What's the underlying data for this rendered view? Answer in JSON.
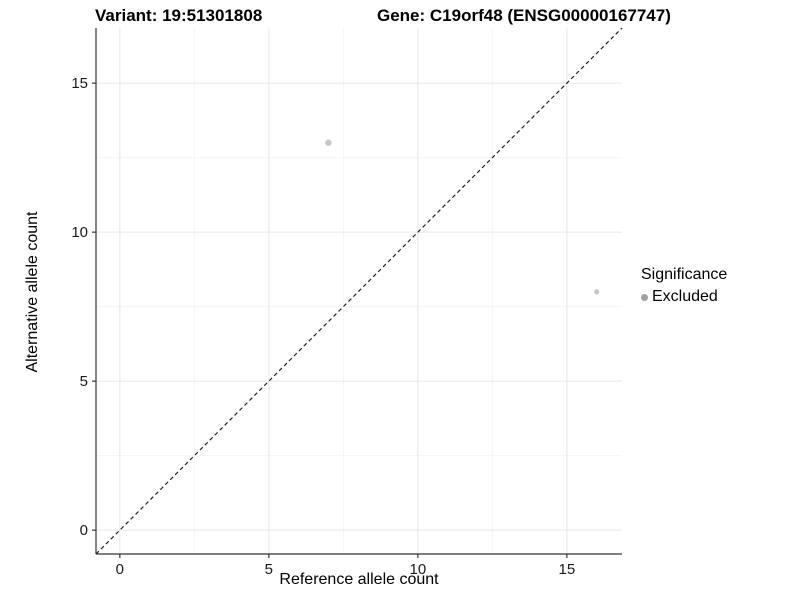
{
  "header": {
    "variant_title": "Variant: 19:51301808",
    "gene_title": "Gene: C19orf48 (ENSG00000167747)"
  },
  "legend": {
    "title": "Significance",
    "entries": [
      {
        "label": "Excluded",
        "color": "#a0a0a0"
      }
    ]
  },
  "chart_data": {
    "type": "scatter",
    "title": "Variant: 19:51301808 | Gene: C19orf48 (ENSG00000167747)",
    "xlabel": "Reference allele count",
    "ylabel": "Alternative allele count",
    "xlim": [
      -0.8,
      16.85
    ],
    "ylim": [
      -0.8,
      16.85
    ],
    "x_ticks": [
      0,
      5,
      10,
      15
    ],
    "y_ticks": [
      0,
      5,
      10,
      15
    ],
    "x_minor_ticks": [
      2.5,
      7.5,
      12.5
    ],
    "y_minor_ticks": [
      2.5,
      7.5,
      12.5
    ],
    "grid": true,
    "legend_position": "right",
    "series": [
      {
        "name": "Excluded",
        "color": "#c6c6c6",
        "points": [
          {
            "x": 7,
            "y": 13,
            "r": 3.2
          },
          {
            "x": 16,
            "y": 8,
            "r": 2.6
          }
        ]
      }
    ],
    "reference_line": {
      "type": "identity",
      "from": [
        -0.8,
        -0.8
      ],
      "to": [
        16.85,
        16.85
      ],
      "style": "dashed",
      "color": "#222222"
    }
  },
  "colors": {
    "background": "#ffffff",
    "grid_major": "#e7e7e7",
    "grid_minor": "#f4f4f4",
    "axis_line": "#333333",
    "tick_text": "#1a1a1a",
    "point_fill": "#c6c6c6",
    "legend_key_fill": "#a0a0a0"
  }
}
